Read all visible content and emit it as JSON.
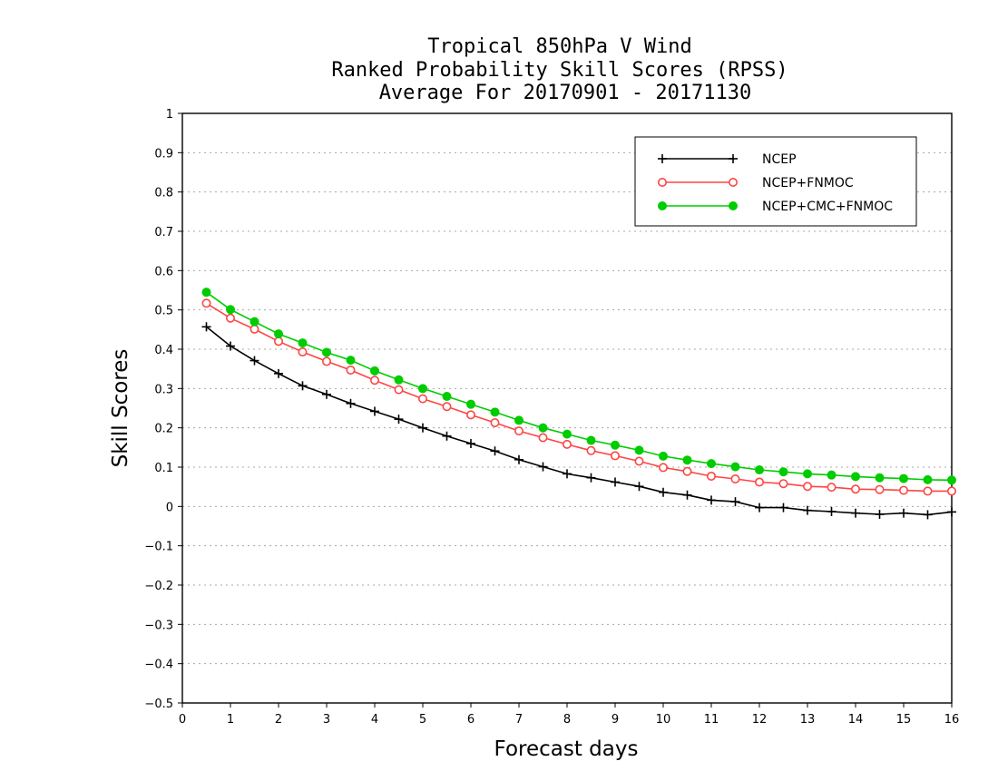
{
  "chart_data": {
    "type": "line",
    "title": [
      "Tropical 850hPa V Wind",
      "Ranked Probability Skill Scores (RPSS)",
      "Average For 20170901 - 20171130"
    ],
    "xlabel": "Forecast days",
    "ylabel": "Skill Scores",
    "xlim": [
      0,
      16
    ],
    "ylim": [
      -0.5,
      1
    ],
    "xticks": [
      0,
      1,
      2,
      3,
      4,
      5,
      6,
      7,
      8,
      9,
      10,
      11,
      12,
      13,
      14,
      15,
      16
    ],
    "yticks": [
      -0.5,
      -0.4,
      -0.3,
      -0.2,
      -0.1,
      0,
      0.1,
      0.2,
      0.3,
      0.4,
      0.5,
      0.6,
      0.7,
      0.8,
      0.9,
      1
    ],
    "ytick_labels": [
      "−0.5",
      "−0.4",
      "−0.3",
      "−0.2",
      "−0.1",
      "0",
      "0.1",
      "0.2",
      "0.3",
      "0.4",
      "0.5",
      "0.6",
      "0.7",
      "0.8",
      "0.9",
      "1"
    ],
    "grid": true,
    "legend_position": "top-right",
    "x": [
      0.5,
      1,
      1.5,
      2,
      2.5,
      3,
      3.5,
      4,
      4.5,
      5,
      5.5,
      6,
      6.5,
      7,
      7.5,
      8,
      8.5,
      9,
      9.5,
      10,
      10.5,
      11,
      11.5,
      12,
      12.5,
      13,
      13.5,
      14,
      14.5,
      15,
      15.5,
      16
    ],
    "series": [
      {
        "name": "NCEP",
        "color": "#000000",
        "marker": "plus",
        "values": [
          0.457,
          0.408,
          0.371,
          0.338,
          0.307,
          0.285,
          0.262,
          0.242,
          0.222,
          0.2,
          0.179,
          0.16,
          0.141,
          0.119,
          0.101,
          0.083,
          0.073,
          0.062,
          0.051,
          0.036,
          0.029,
          0.016,
          0.012,
          -0.003,
          -0.003,
          -0.01,
          -0.013,
          -0.017,
          -0.02,
          -0.017,
          -0.021,
          -0.014
        ]
      },
      {
        "name": "NCEP+FNMOC",
        "color": "#ff4444",
        "marker": "open-circle",
        "values": [
          0.517,
          0.479,
          0.451,
          0.42,
          0.393,
          0.369,
          0.347,
          0.321,
          0.297,
          0.274,
          0.254,
          0.233,
          0.213,
          0.192,
          0.175,
          0.158,
          0.142,
          0.129,
          0.115,
          0.099,
          0.089,
          0.077,
          0.07,
          0.062,
          0.058,
          0.051,
          0.049,
          0.044,
          0.043,
          0.041,
          0.039,
          0.039
        ]
      },
      {
        "name": "NCEP+CMC+FNMOC",
        "color": "#00cc00",
        "marker": "filled-circle",
        "values": [
          0.545,
          0.501,
          0.47,
          0.439,
          0.416,
          0.392,
          0.372,
          0.345,
          0.322,
          0.3,
          0.28,
          0.26,
          0.24,
          0.219,
          0.2,
          0.184,
          0.168,
          0.156,
          0.143,
          0.128,
          0.118,
          0.109,
          0.101,
          0.093,
          0.088,
          0.083,
          0.08,
          0.076,
          0.073,
          0.071,
          0.068,
          0.067
        ]
      }
    ]
  }
}
